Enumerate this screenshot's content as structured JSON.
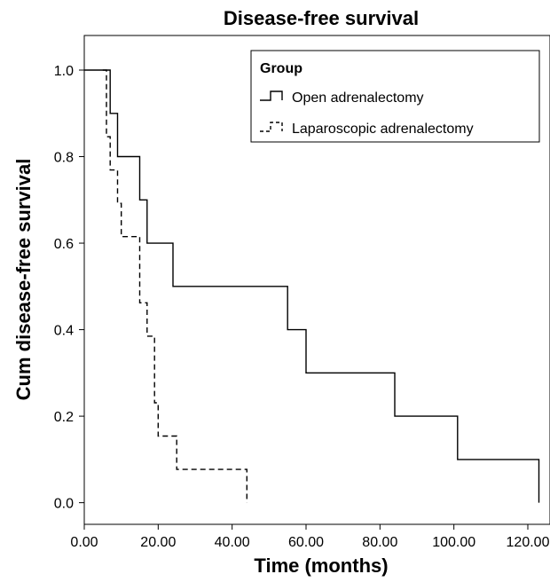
{
  "chart_data": {
    "type": "line",
    "title": "Disease-free survival",
    "xlabel": "Time (months)",
    "ylabel": "Cum disease-free survival",
    "xlim": [
      0,
      126
    ],
    "ylim": [
      -0.05,
      1.08
    ],
    "xticks": [
      0,
      20,
      40,
      60,
      80,
      100,
      120
    ],
    "xtick_labels": [
      "0.00",
      "20.00",
      "40.00",
      "60.00",
      "80.00",
      "100.00",
      "120.00"
    ],
    "yticks": [
      0.0,
      0.2,
      0.4,
      0.6,
      0.8,
      1.0
    ],
    "ytick_labels": [
      "0.0",
      "0.2",
      "0.4",
      "0.6",
      "0.8",
      "1.0"
    ],
    "grid": false,
    "legend": {
      "title": "Group",
      "placement": "top-right"
    },
    "series": [
      {
        "name": "Open adrenalectomy",
        "style": "solid",
        "color": "#000000",
        "x": [
          0,
          7,
          7,
          9,
          9,
          15,
          15,
          17,
          17,
          24,
          24,
          55,
          55,
          60,
          60,
          84,
          84,
          101,
          101,
          123,
          123
        ],
        "y": [
          1.0,
          1.0,
          0.9,
          0.9,
          0.8,
          0.8,
          0.7,
          0.7,
          0.6,
          0.6,
          0.5,
          0.5,
          0.4,
          0.4,
          0.3,
          0.3,
          0.2,
          0.2,
          0.1,
          0.1,
          0.0
        ]
      },
      {
        "name": "Laparoscopic adrenalectomy",
        "style": "dashed",
        "color": "#000000",
        "x": [
          5,
          6,
          6,
          7,
          7,
          9,
          9,
          10,
          10,
          15,
          15,
          17,
          17,
          19,
          19,
          20,
          20,
          21,
          21,
          25,
          25,
          30,
          30,
          44,
          44
        ],
        "y": [
          1.0,
          1.0,
          0.846,
          0.846,
          0.769,
          0.769,
          0.692,
          0.692,
          0.615,
          0.615,
          0.462,
          0.462,
          0.385,
          0.385,
          0.231,
          0.231,
          0.154,
          0.154,
          0.154,
          0.154,
          0.077,
          0.077,
          0.077,
          0.077,
          0.0
        ]
      }
    ]
  }
}
